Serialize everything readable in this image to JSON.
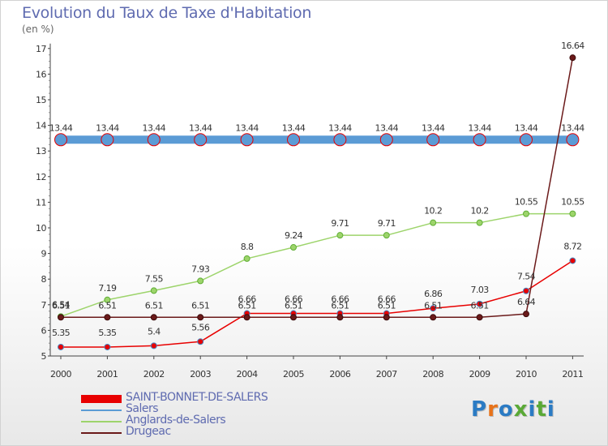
{
  "title": "Evolution du Taux de Taxe d'Habitation",
  "subtitle": "(en %)",
  "logo": {
    "text": "Proxiti",
    "colors": [
      "#2b7bc4",
      "#e8731a",
      "#2b7bc4",
      "#5aa936",
      "#2b7bc4",
      "#5aa936",
      "#2b7bc4"
    ]
  },
  "chart_data": {
    "type": "line",
    "categories": [
      "2000",
      "2001",
      "2002",
      "2003",
      "2004",
      "2005",
      "2006",
      "2007",
      "2008",
      "2009",
      "2010",
      "2011"
    ],
    "ylim": [
      5,
      17
    ],
    "yticks": [
      "5",
      "6",
      "7",
      "8",
      "9",
      "10",
      "11",
      "12",
      "13",
      "14",
      "15",
      "16",
      "17"
    ],
    "grid": false,
    "legend_position": "bottom-left",
    "series": [
      {
        "name": "SAINT-BONNET-DE-SALERS",
        "color": "#e80000",
        "values": [
          5.35,
          5.35,
          5.4,
          5.56,
          6.66,
          6.66,
          6.66,
          6.66,
          6.86,
          7.03,
          7.54,
          8.72
        ],
        "labels": [
          "5.35",
          "5.35",
          "5.4",
          "5.56",
          "6.66",
          "6.66",
          "6.66",
          "6.66",
          "6.86",
          "7.03",
          "7.54",
          "8.72"
        ]
      },
      {
        "name": "Salers",
        "color": "#5b9bd5",
        "values": [
          13.44,
          13.44,
          13.44,
          13.44,
          13.44,
          13.44,
          13.44,
          13.44,
          13.44,
          13.44,
          13.44,
          13.44
        ],
        "labels": [
          "13.44",
          "13.44",
          "13.44",
          "13.44",
          "13.44",
          "13.44",
          "13.44",
          "13.44",
          "13.44",
          "13.44",
          "13.44",
          "13.44"
        ]
      },
      {
        "name": "Anglards-de-Salers",
        "color": "#9dd46b",
        "values": [
          6.54,
          7.19,
          7.55,
          7.93,
          8.8,
          9.24,
          9.71,
          9.71,
          10.2,
          10.2,
          10.55,
          10.55
        ],
        "labels": [
          "6.54",
          "7.19",
          "7.55",
          "7.93",
          "8.8",
          "9.24",
          "9.71",
          "9.71",
          "10.2",
          "10.2",
          "10.55",
          "10.55"
        ]
      },
      {
        "name": "Drugeac",
        "color": "#6b1a1a",
        "values": [
          6.51,
          6.51,
          6.51,
          6.51,
          6.51,
          6.51,
          6.51,
          6.51,
          6.51,
          6.51,
          6.64,
          16.64
        ],
        "labels": [
          "6.51",
          "6.51",
          "6.51",
          "6.51",
          "6.51",
          "6.51",
          "6.51",
          "6.51",
          "6.51",
          "6.51",
          "6.64",
          "16.64"
        ]
      }
    ]
  }
}
